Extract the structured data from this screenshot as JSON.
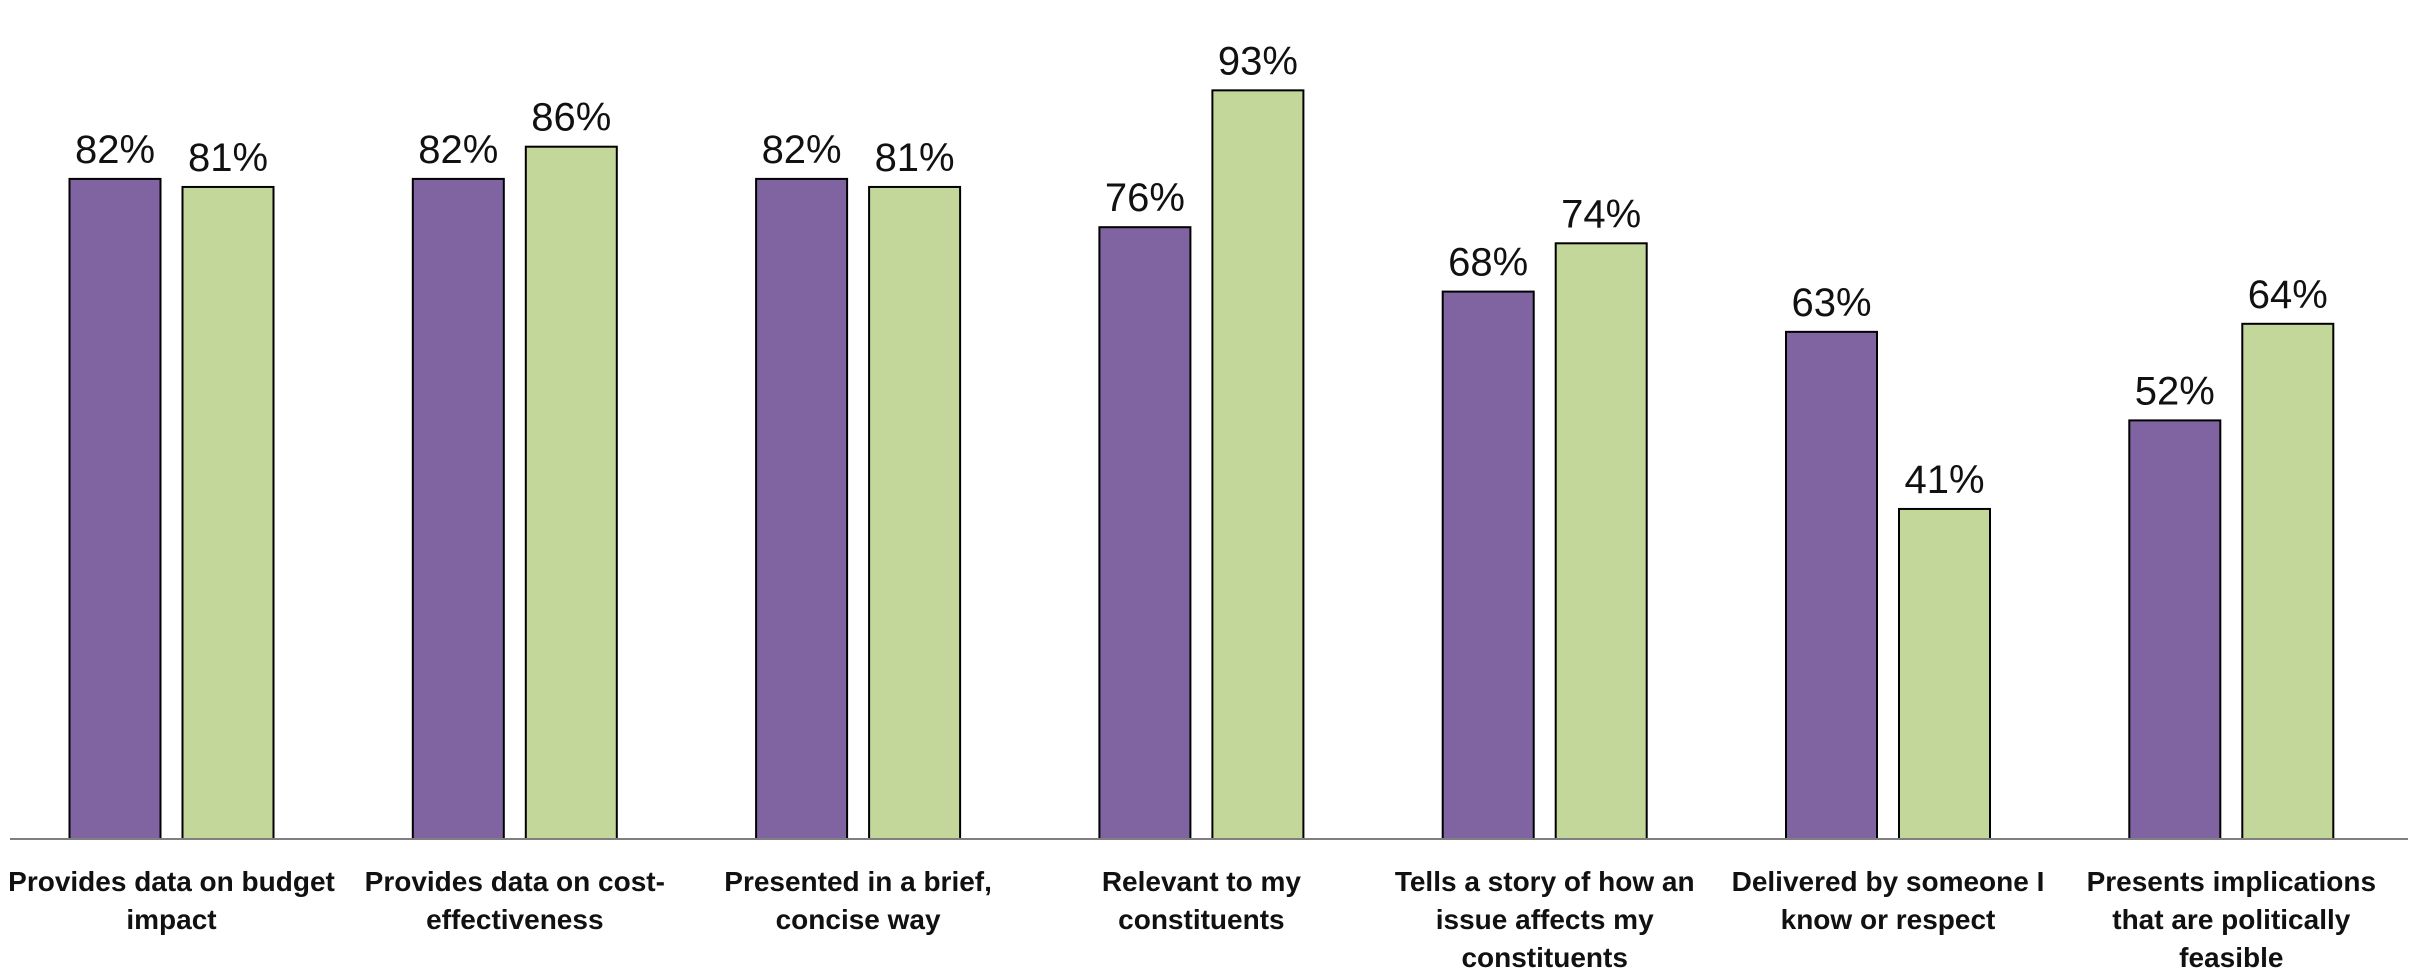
{
  "chart_data": {
    "type": "bar",
    "categories": [
      [
        "Provides data on budget",
        "impact"
      ],
      [
        "Provides data on cost-",
        "effectiveness"
      ],
      [
        "Presented in a brief,",
        "concise way"
      ],
      [
        "Relevant to my",
        "constituents"
      ],
      [
        "Tells a story of how an",
        "issue affects my",
        "constituents"
      ],
      [
        "Delivered by someone I",
        "know or respect"
      ],
      [
        "Presents implications",
        "that are politically",
        "feasible"
      ]
    ],
    "series": [
      {
        "values": [
          82,
          82,
          82,
          76,
          68,
          63,
          52
        ],
        "labels": [
          "82%",
          "82%",
          "82%",
          "76%",
          "68%",
          "63%",
          "52%"
        ],
        "color": "#8064a2"
      },
      {
        "values": [
          81,
          86,
          81,
          93,
          74,
          41,
          64
        ],
        "labels": [
          "81%",
          "86%",
          "81%",
          "93%",
          "74%",
          "41%",
          "64%"
        ],
        "color": "#c4d79b"
      }
    ],
    "title": "",
    "xlabel": "",
    "ylabel": "",
    "ylim": [
      0,
      100
    ],
    "grid": false,
    "legend": "none",
    "bar_outline_color": "#000000",
    "axis_color": "#7f7f7f"
  }
}
